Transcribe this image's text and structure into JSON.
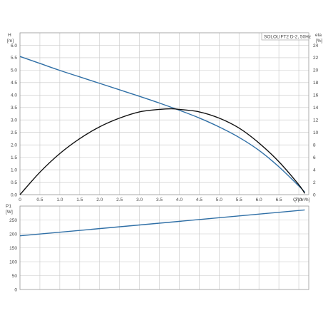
{
  "chart_data": [
    {
      "type": "line",
      "title": "SOLOLIFT2 D-2, 50Hz",
      "xlabel": "Q [m³/h]",
      "ylabel": "H [m]",
      "ylabel_right": "eta [%]",
      "xlim": [
        0,
        7.25
      ],
      "ylim": [
        0,
        6.5
      ],
      "ylim_right": [
        0,
        26
      ],
      "grid": true,
      "x_ticks": [
        "0",
        "0.5",
        "1.0",
        "1.5",
        "2.0",
        "2.5",
        "3.0",
        "3.5",
        "4.0",
        "4.5",
        "5.0",
        "5.5",
        "6.0",
        "6.5",
        "7.0"
      ],
      "y_ticks": [
        "0.0",
        "0.5",
        "1.0",
        "1.5",
        "2.0",
        "2.5",
        "3.0",
        "3.5",
        "4.0",
        "4.5",
        "5.0",
        "5.5",
        "6.0"
      ],
      "y_ticks_right": [
        "0",
        "2",
        "4",
        "6",
        "8",
        "10",
        "12",
        "14",
        "16",
        "18",
        "20",
        "22",
        "24"
      ],
      "series": [
        {
          "axis": "left",
          "color": "#2f6fa6",
          "x": [
            0,
            0.5,
            1.0,
            1.5,
            2.0,
            2.5,
            3.0,
            3.5,
            4.0,
            4.5,
            5.0,
            5.5,
            6.0,
            6.5,
            7.0,
            7.15
          ],
          "values": [
            5.55,
            5.27,
            4.99,
            4.73,
            4.47,
            4.21,
            3.95,
            3.68,
            3.39,
            3.08,
            2.72,
            2.3,
            1.78,
            1.12,
            0.35,
            0.1
          ]
        },
        {
          "axis": "right",
          "color": "#111111",
          "x": [
            0,
            0.5,
            1.0,
            1.5,
            2.0,
            2.5,
            3.0,
            3.5,
            3.8,
            4.0,
            4.5,
            5.0,
            5.5,
            6.0,
            6.5,
            7.0,
            7.15
          ],
          "values": [
            0,
            3.6,
            6.6,
            9.0,
            10.9,
            12.3,
            13.3,
            13.7,
            13.8,
            13.7,
            13.3,
            12.3,
            10.7,
            8.3,
            5.3,
            1.6,
            0.2
          ]
        }
      ]
    },
    {
      "type": "line",
      "xlabel": "",
      "ylabel": "P1 [W]",
      "xlim": [
        0,
        7.25
      ],
      "ylim": [
        0,
        300
      ],
      "grid": true,
      "y_ticks": [
        "0",
        "50",
        "100",
        "150",
        "200",
        "250"
      ],
      "series": [
        {
          "axis": "left",
          "color": "#2f6fa6",
          "x": [
            0,
            7.15
          ],
          "values": [
            193,
            286
          ]
        }
      ]
    }
  ]
}
